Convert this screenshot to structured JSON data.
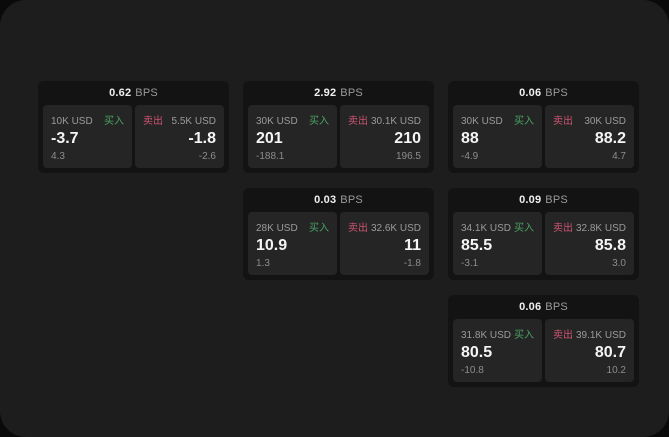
{
  "labels": {
    "bps_unit": "BPS",
    "buy": "买入",
    "sell": "卖出"
  },
  "colors": {
    "buy": "#4aa264",
    "sell": "#cd5472",
    "window_bg": "#1d1d1d",
    "card_bg": "#131313",
    "panel_bg": "#252525"
  },
  "cards": [
    {
      "bps": "0.62",
      "row": 1,
      "col": 1,
      "buy": {
        "size": "10K USD",
        "main": "-3.7",
        "sub": "4.3"
      },
      "sell": {
        "size": "5.5K USD",
        "main": "-1.8",
        "sub": "-2.6"
      }
    },
    {
      "bps": "2.92",
      "row": 1,
      "col": 2,
      "buy": {
        "size": "30K USD",
        "main": "201",
        "sub": "-188.1"
      },
      "sell": {
        "size": "30.1K USD",
        "main": "210",
        "sub": "196.5"
      }
    },
    {
      "bps": "0.06",
      "row": 1,
      "col": 3,
      "buy": {
        "size": "30K USD",
        "main": "88",
        "sub": "-4.9"
      },
      "sell": {
        "size": "30K USD",
        "main": "88.2",
        "sub": "4.7"
      }
    },
    {
      "bps": "0.03",
      "row": 2,
      "col": 2,
      "buy": {
        "size": "28K USD",
        "main": "10.9",
        "sub": "1.3"
      },
      "sell": {
        "size": "32.6K USD",
        "main": "11",
        "sub": "-1.8"
      }
    },
    {
      "bps": "0.09",
      "row": 2,
      "col": 3,
      "buy": {
        "size": "34.1K USD",
        "main": "85.5",
        "sub": "-3.1"
      },
      "sell": {
        "size": "32.8K USD",
        "main": "85.8",
        "sub": "3.0"
      }
    },
    {
      "bps": "0.06",
      "row": 3,
      "col": 3,
      "buy": {
        "size": "31.8K USD",
        "main": "80.5",
        "sub": "-10.8"
      },
      "sell": {
        "size": "39.1K USD",
        "main": "80.7",
        "sub": "10.2"
      }
    }
  ]
}
